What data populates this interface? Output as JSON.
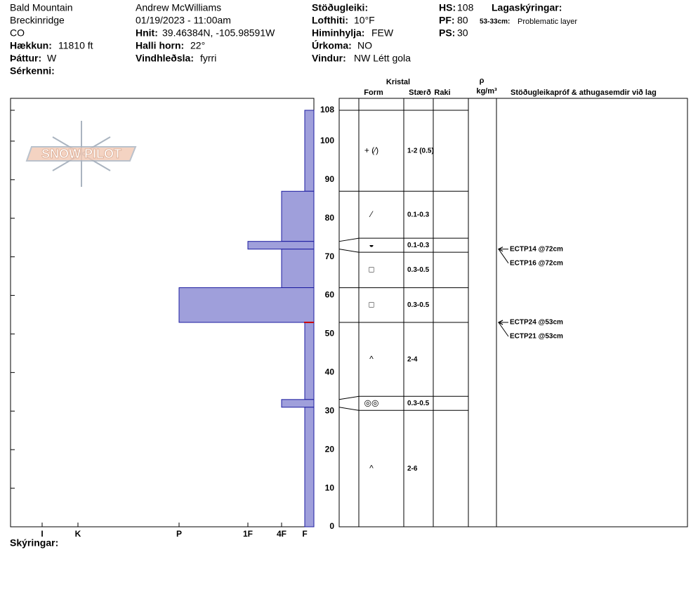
{
  "info": {
    "location": "Bald Mountain",
    "area": "Breckinridge",
    "state": "CO",
    "elevation": {
      "label": "Hækkun:",
      "value": "11810 ft"
    },
    "aspect": {
      "label": "Þáttur:",
      "value": "W"
    },
    "features": {
      "label": "Sérkenni:"
    },
    "observer": "Andrew McWilliams",
    "datetime": "01/19/2023 - 11:00am",
    "coords": {
      "label": "Hnit:",
      "value": "39.46384N, -105.98591W"
    },
    "slope": {
      "label": "Halli horn:",
      "value": "22°"
    },
    "wind_loading": {
      "label": "Vindhleðsla:",
      "value": "fyrri"
    },
    "stability": {
      "label": "Stöðugleiki:"
    },
    "air_temp": {
      "label": "Lofthiti:",
      "value": "10°F"
    },
    "sky": {
      "label": "Himinhylja:",
      "value": "FEW"
    },
    "precip": {
      "label": "Úrkoma:",
      "value": "NO"
    },
    "wind": {
      "label": "Vindur:",
      "value": "NW Létt gola"
    },
    "hs": {
      "label": "HS:",
      "value": 108
    },
    "pf": {
      "label": "PF:",
      "value": 80
    },
    "ps": {
      "label": "PS:",
      "value": 30
    },
    "layer_notes": {
      "label": "Lagaskýringar:",
      "range": "53-33cm:",
      "text": "Problematic layer"
    }
  },
  "logo": "SNOW PILOT",
  "table_headers": {
    "crystal": "Kristal",
    "form": "Form",
    "size": "Stærð",
    "moisture": "Raki",
    "density": "ρ",
    "density_unit": "kg/m³",
    "comments": "Stöðugleikapróf & athugasemdir við lag"
  },
  "footer": {
    "label": "Skýringar:"
  },
  "chart_data": {
    "type": "profile",
    "ylim": [
      0,
      108
    ],
    "yticks": [
      0,
      10,
      20,
      30,
      40,
      50,
      60,
      70,
      80,
      90,
      100,
      108
    ],
    "hardness_scale": [
      "I",
      "K",
      "P",
      "1F",
      "4F",
      "F"
    ],
    "color": "#9f9fdb",
    "edge_color": "#1c1ca0",
    "problem_layer": {
      "top": 53,
      "bottom": 33,
      "color": "#cc0000"
    },
    "layers": [
      {
        "top": 108,
        "bottom": 87,
        "hardness": "F",
        "form": "+ (⁄)",
        "size": "1-2 (0.5)"
      },
      {
        "top": 87,
        "bottom": 74,
        "hardness": "4F",
        "form": "⁄",
        "size": "0.1-0.3"
      },
      {
        "top": 74,
        "bottom": 72,
        "hardness": "1F",
        "form": "◒",
        "size": "0.1-0.3"
      },
      {
        "top": 72,
        "bottom": 62,
        "hardness": "4F",
        "form": "□",
        "size": "0.3-0.5"
      },
      {
        "top": 62,
        "bottom": 53,
        "hardness": "P",
        "form": "□",
        "size": "0.3-0.5"
      },
      {
        "top": 53,
        "bottom": 33,
        "hardness": "F",
        "form": "^",
        "size": "2-4"
      },
      {
        "top": 33,
        "bottom": 31,
        "hardness": "4F",
        "form": "◎◎",
        "size": "0.3-0.5"
      },
      {
        "top": 31,
        "bottom": 0,
        "hardness": "F",
        "form": "^",
        "size": "2-6"
      }
    ],
    "tests": [
      {
        "text": "ECTP14 @72cm",
        "depth": 72
      },
      {
        "text": "ECTP16 @72cm",
        "depth": 72
      },
      {
        "text": "ECTP24 @53cm",
        "depth": 53
      },
      {
        "text": "ECTP21 @53cm",
        "depth": 53
      }
    ]
  }
}
